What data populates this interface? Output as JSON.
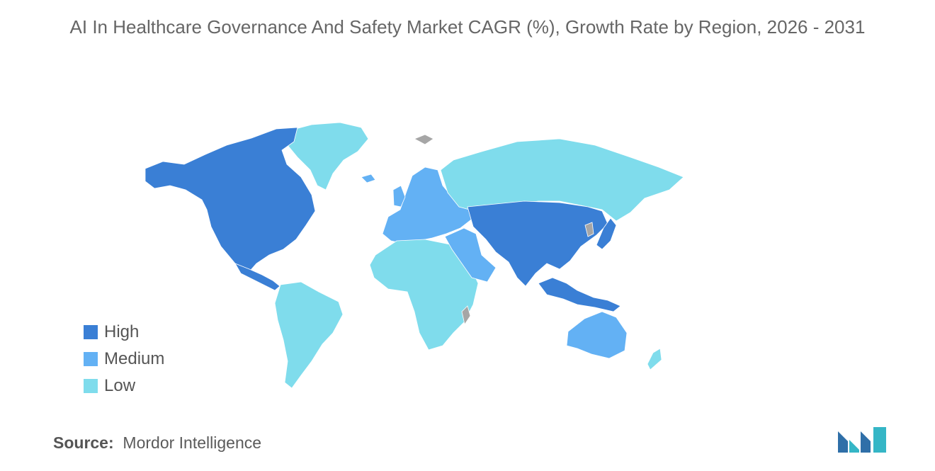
{
  "title": "AI In Healthcare Governance And Safety Market CAGR (%), Growth Rate by Region, 2026 - 2031",
  "legend": [
    {
      "label": "High",
      "color": "#3a7fd5"
    },
    {
      "label": "Medium",
      "color": "#63b1f4"
    },
    {
      "label": "Low",
      "color": "#7fdcec"
    }
  ],
  "no_data_color": "#a6a6a6",
  "source_label": "Source:",
  "source_value": "Mordor Intelligence",
  "regions": {
    "north_america": "High",
    "asia_pacific_core": "High",
    "southeast_asia": "High",
    "europe": "Medium",
    "middle_east": "Medium",
    "australia": "Medium",
    "russia_north_asia": "Low",
    "greenland": "Low",
    "south_america": "Low",
    "africa": "Low",
    "new_zealand": "Low"
  },
  "logo_colors": [
    "#2f6fa8",
    "#35b6c6"
  ]
}
